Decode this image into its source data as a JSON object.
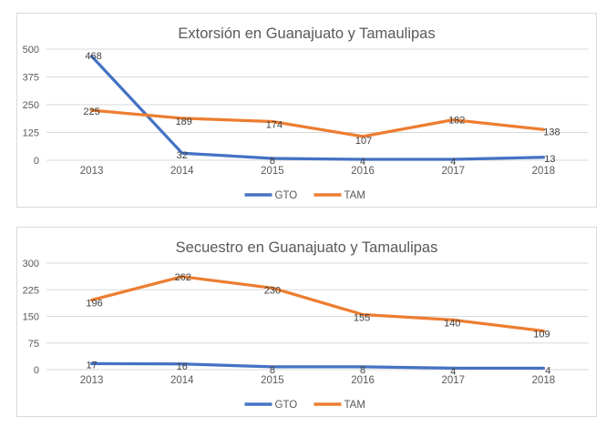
{
  "page": {
    "background": "#ffffff"
  },
  "styles": {
    "gto_color": "#4472C4",
    "tam_color": "#ED7D31",
    "title_color": "#595959",
    "tick_label_color": "#595959",
    "data_label_color": "#404040",
    "gridline_color": "#d9d9d9",
    "panel_border_color": "#d9d9d9"
  },
  "chart_data": [
    {
      "type": "line",
      "title": "Extorsión en Guanajuato y Tamaulipas",
      "categories": [
        "2013",
        "2014",
        "2015",
        "2016",
        "2017",
        "2018"
      ],
      "series": [
        {
          "name": "GTO",
          "color": "#4472C4",
          "values": [
            468,
            32,
            8,
            4,
            4,
            13
          ],
          "label_offsets": [
            [
              2,
              -1
            ],
            [
              0,
              2
            ],
            [
              0,
              2
            ],
            [
              0,
              2
            ],
            [
              0,
              2
            ],
            [
              7,
              1
            ]
          ]
        },
        {
          "name": "TAM",
          "color": "#ED7D31",
          "values": [
            225,
            189,
            174,
            107,
            182,
            138
          ],
          "label_offsets": [
            [
              0,
              1
            ],
            [
              2,
              3
            ],
            [
              2,
              3
            ],
            [
              1,
              4
            ],
            [
              4,
              0
            ],
            [
              9,
              2
            ]
          ]
        }
      ],
      "xlabel": "",
      "ylabel": "",
      "ylim": [
        0,
        500
      ],
      "yticks": [
        0,
        125,
        250,
        375,
        500
      ],
      "grid": true,
      "data_labels": true,
      "legend_position": "bottom"
    },
    {
      "type": "line",
      "title": "Secuestro en Guanajuato y Tamaulipas",
      "categories": [
        "2013",
        "2014",
        "2015",
        "2016",
        "2017",
        "2018"
      ],
      "series": [
        {
          "name": "GTO",
          "color": "#4472C4",
          "values": [
            17,
            16,
            8,
            8,
            4,
            4
          ],
          "label_offsets": [
            [
              0,
              1
            ],
            [
              0,
              2
            ],
            [
              0,
              3
            ],
            [
              0,
              3
            ],
            [
              0,
              3
            ],
            [
              5,
              2
            ]
          ]
        },
        {
          "name": "TAM",
          "color": "#ED7D31",
          "values": [
            196,
            262,
            230,
            155,
            140,
            109
          ],
          "label_offsets": [
            [
              3,
              3
            ],
            [
              1,
              0
            ],
            [
              0,
              2
            ],
            [
              -1,
              3
            ],
            [
              -1,
              3
            ],
            [
              -2,
              3
            ]
          ]
        }
      ],
      "xlabel": "",
      "ylabel": "",
      "ylim": [
        0,
        300
      ],
      "yticks": [
        0,
        75,
        150,
        225,
        300
      ],
      "grid": true,
      "data_labels": true,
      "legend_position": "bottom"
    }
  ]
}
